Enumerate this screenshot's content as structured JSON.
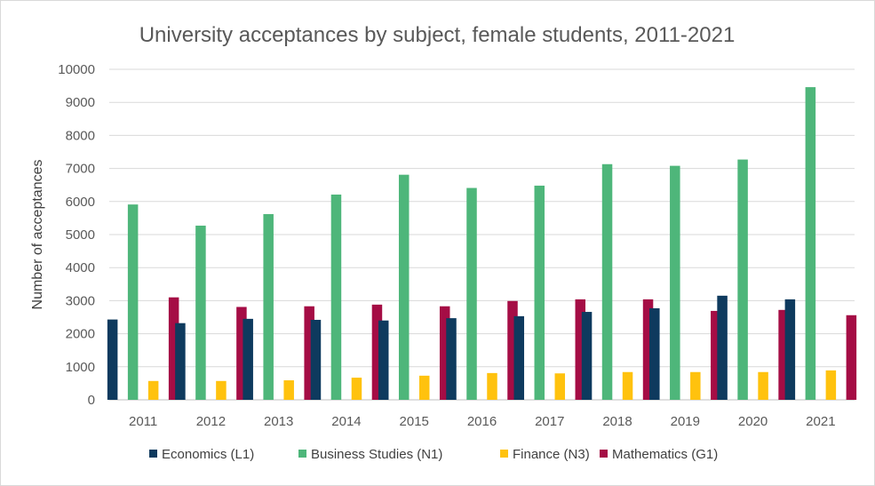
{
  "chart_data": {
    "type": "bar",
    "title": "University acceptances by subject, female students, 2011-2021",
    "xlabel": "",
    "ylabel": "Number of acceptances",
    "ylim": [
      0,
      10000
    ],
    "yticks": [
      0,
      1000,
      2000,
      3000,
      4000,
      5000,
      6000,
      7000,
      8000,
      9000,
      10000
    ],
    "grid": true,
    "legend_position": "bottom",
    "categories": [
      "2011",
      "2012",
      "2013",
      "2014",
      "2015",
      "2016",
      "2017",
      "2018",
      "2019",
      "2020",
      "2021"
    ],
    "series": [
      {
        "name": "Economics (L1)",
        "color": "#0e3a5e",
        "values": [
          2430,
          2320,
          2450,
          2420,
          2400,
          2470,
          2530,
          2660,
          2770,
          3150,
          3040
        ]
      },
      {
        "name": "Business Studies (N1)",
        "color": "#4eb67a",
        "values": [
          5910,
          5270,
          5620,
          6210,
          6810,
          6410,
          6480,
          7130,
          7080,
          7270,
          9460
        ]
      },
      {
        "name": "Finance (N3)",
        "color": "#ffc20e",
        "values": [
          570,
          570,
          590,
          670,
          730,
          810,
          800,
          840,
          840,
          840,
          890
        ]
      },
      {
        "name": "Mathematics (G1)",
        "color": "#a50d45",
        "values": [
          3100,
          2810,
          2830,
          2880,
          2830,
          2990,
          3040,
          3040,
          2690,
          2720,
          2560
        ]
      }
    ]
  }
}
